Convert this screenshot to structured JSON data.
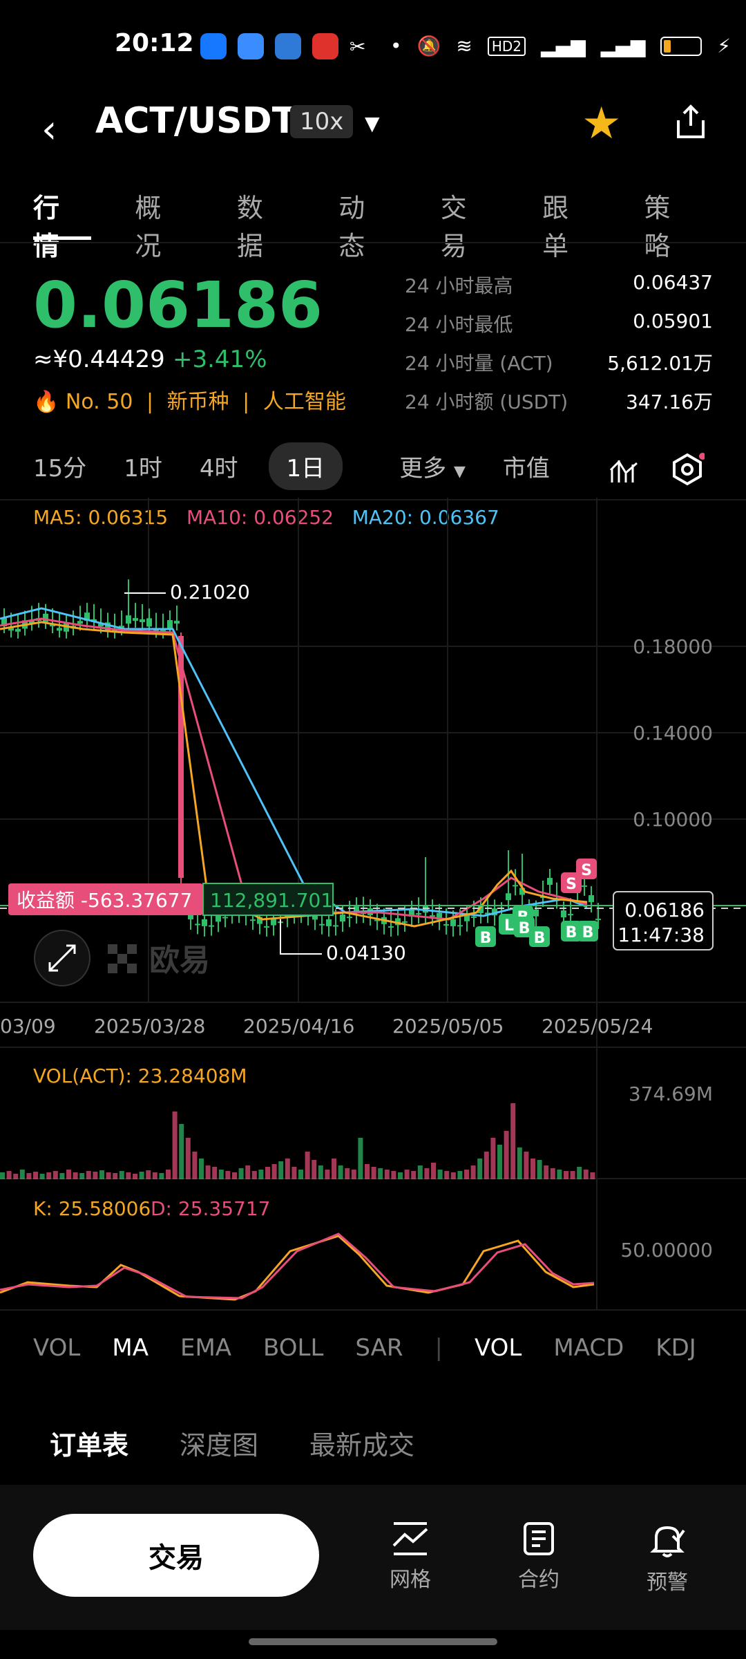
{
  "status_bar": {
    "time": "20:12"
  },
  "header": {
    "pair": "ACT/USDT",
    "leverage": "10x"
  },
  "tabs": [
    {
      "label": "行情"
    },
    {
      "label": "概况"
    },
    {
      "label": "数据"
    },
    {
      "label": "动态"
    },
    {
      "label": "交易"
    },
    {
      "label": "跟单"
    },
    {
      "label": "策略"
    }
  ],
  "ticker": {
    "last_price": "0.06186",
    "cny_price": "≈¥0.44429",
    "change": "+3.41%",
    "rank_tag": "No. 50",
    "tag1": "新币种",
    "tag2": "人工智能",
    "stats": [
      {
        "k": "24 小时最高",
        "v": "0.06437"
      },
      {
        "k": "24 小时最低",
        "v": "0.05901"
      },
      {
        "k": "24 小时量 (ACT)",
        "v": "5,612.01万"
      },
      {
        "k": "24 小时额 (USDT)",
        "v": "347.16万"
      }
    ]
  },
  "periods": [
    {
      "label": "15分"
    },
    {
      "label": "1时"
    },
    {
      "label": "4时"
    },
    {
      "label": "1日",
      "active": true
    },
    {
      "label": "更多"
    },
    {
      "label": "市值"
    }
  ],
  "ma_legend": {
    "ma5": "MA5: 0.06315",
    "ma10": "MA10: 0.06252",
    "ma20": "MA20: 0.06367"
  },
  "chart_labels": {
    "high_mark": "0.21020",
    "low_mark": "0.04130",
    "y_ticks": [
      "0.18000",
      "0.14000",
      "0.10000"
    ],
    "current_price": "0.06186",
    "countdown": "11:47:38",
    "pnl_label": "收益额 -563.37677",
    "position_value": "112,891.701",
    "watermark": "欧易",
    "x_ticks": [
      "03/09",
      "2025/03/28",
      "2025/04/16",
      "2025/05/05",
      "2025/05/24"
    ],
    "vol_label": "VOL(ACT): 23.28408M",
    "vol_max": "374.69M",
    "kd_k": "K: 25.58006",
    "kd_d": "D: 25.35717",
    "kd_tick": "50.00000"
  },
  "chart_data": {
    "type": "candlestick",
    "x_ticks": [
      "03/09",
      "2025/03/28",
      "2025/04/16",
      "2025/05/05",
      "2025/05/24"
    ],
    "y_ticks": [
      0.18,
      0.14,
      0.1
    ],
    "high_mark": 0.2102,
    "low_mark": 0.0413,
    "last_price": 0.06186,
    "ma": {
      "ma5": 0.06315,
      "ma10": 0.06252,
      "ma20": 0.06367
    },
    "volume_latest": "23.28408M",
    "volume_max": "374.69M",
    "kd": {
      "k": 25.58006,
      "d": 25.35717
    },
    "colors": {
      "up": "#2fbe6a",
      "down": "#e84e7a",
      "ma5": "#f5a623",
      "ma10": "#e84e7a",
      "ma20": "#4fc3f7"
    }
  },
  "indicator_tabs": [
    {
      "label": "VOL"
    },
    {
      "label": "MA",
      "active": true
    },
    {
      "label": "EMA"
    },
    {
      "label": "BOLL"
    },
    {
      "label": "SAR"
    },
    {
      "label": "VOL",
      "active": true
    },
    {
      "label": "MACD"
    },
    {
      "label": "KDJ"
    }
  ],
  "book_tabs": [
    {
      "label": "订单表",
      "active": true
    },
    {
      "label": "深度图"
    },
    {
      "label": "最新成交"
    }
  ],
  "bottom_bar": {
    "trade": "交易",
    "grid": "网格",
    "contract": "合约",
    "alert": "预警"
  },
  "colors": {
    "up": "#2fbe6a",
    "down": "#e84e7a",
    "accent": "#f5b719"
  }
}
